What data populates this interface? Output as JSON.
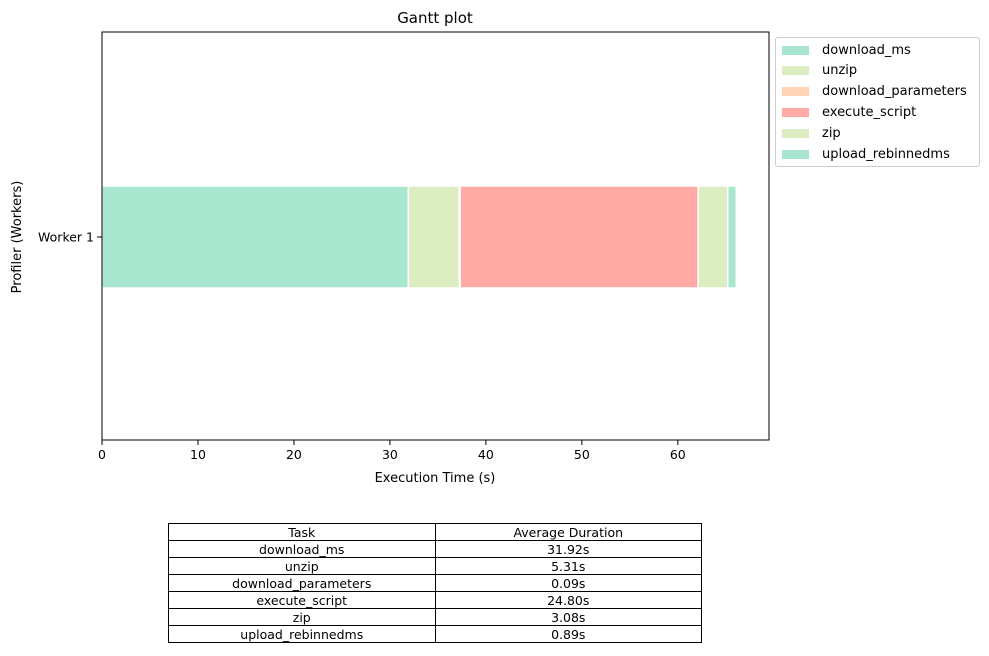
{
  "chart_data": {
    "type": "bar",
    "orientation": "horizontal-stacked",
    "title": "Gantt plot",
    "xlabel": "Execution Time (s)",
    "ylabel": "Profiler (Workers)",
    "xlim": [
      0,
      69.5
    ],
    "xticks": [
      "0",
      "10",
      "20",
      "30",
      "40",
      "50",
      "60"
    ],
    "categories": [
      "Worker 1"
    ],
    "grid": false,
    "legend_position": "outside-top-right",
    "series": [
      {
        "name": "download_ms",
        "start": 0,
        "duration": 31.92,
        "color": "#a8e6cf"
      },
      {
        "name": "unzip",
        "start": 31.92,
        "duration": 5.31,
        "color": "#dcedc1"
      },
      {
        "name": "download_parameters",
        "start": 37.23,
        "duration": 0.09,
        "color": "#ffd3b6"
      },
      {
        "name": "execute_script",
        "start": 37.32,
        "duration": 24.8,
        "color": "#ffaaa5"
      },
      {
        "name": "zip",
        "start": 62.12,
        "duration": 3.08,
        "color": "#dcedc1"
      },
      {
        "name": "upload_rebinnedms",
        "start": 65.2,
        "duration": 0.89,
        "color": "#a8e6cf"
      }
    ]
  },
  "table": {
    "headers": [
      "Task",
      "Average Duration"
    ],
    "rows": [
      [
        "download_ms",
        "31.92s"
      ],
      [
        "unzip",
        "5.31s"
      ],
      [
        "download_parameters",
        "0.09s"
      ],
      [
        "execute_script",
        "24.80s"
      ],
      [
        "zip",
        "3.08s"
      ],
      [
        "upload_rebinnedms",
        "0.89s"
      ]
    ]
  }
}
